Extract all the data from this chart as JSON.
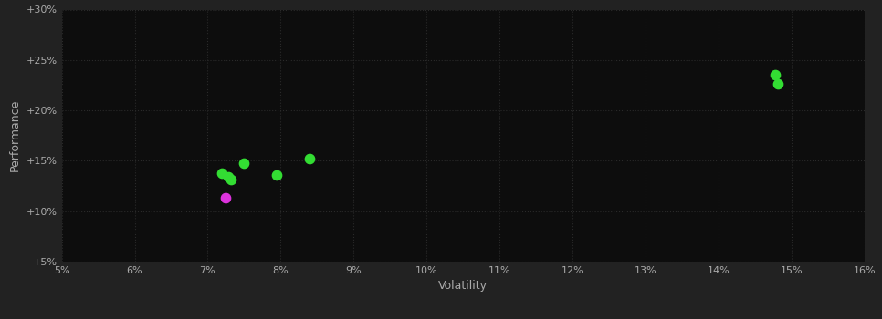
{
  "background_color": "#222222",
  "plot_bg_color": "#0d0d0d",
  "grid_color": "#2a2a2a",
  "text_color": "#aaaaaa",
  "xlabel": "Volatility",
  "ylabel": "Performance",
  "xlim": [
    0.05,
    0.16
  ],
  "ylim": [
    0.05,
    0.3
  ],
  "xticks": [
    0.05,
    0.06,
    0.07,
    0.08,
    0.09,
    0.1,
    0.11,
    0.12,
    0.13,
    0.14,
    0.15,
    0.16
  ],
  "yticks": [
    0.05,
    0.1,
    0.15,
    0.2,
    0.25,
    0.3
  ],
  "green_points": [
    [
      0.072,
      0.138
    ],
    [
      0.0728,
      0.134
    ],
    [
      0.0732,
      0.131
    ],
    [
      0.075,
      0.148
    ],
    [
      0.0795,
      0.136
    ],
    [
      0.084,
      0.152
    ],
    [
      0.1478,
      0.235
    ],
    [
      0.1482,
      0.226
    ]
  ],
  "magenta_points": [
    [
      0.0725,
      0.113
    ]
  ],
  "green_color": "#33dd33",
  "magenta_color": "#dd33dd",
  "marker_size": 55
}
